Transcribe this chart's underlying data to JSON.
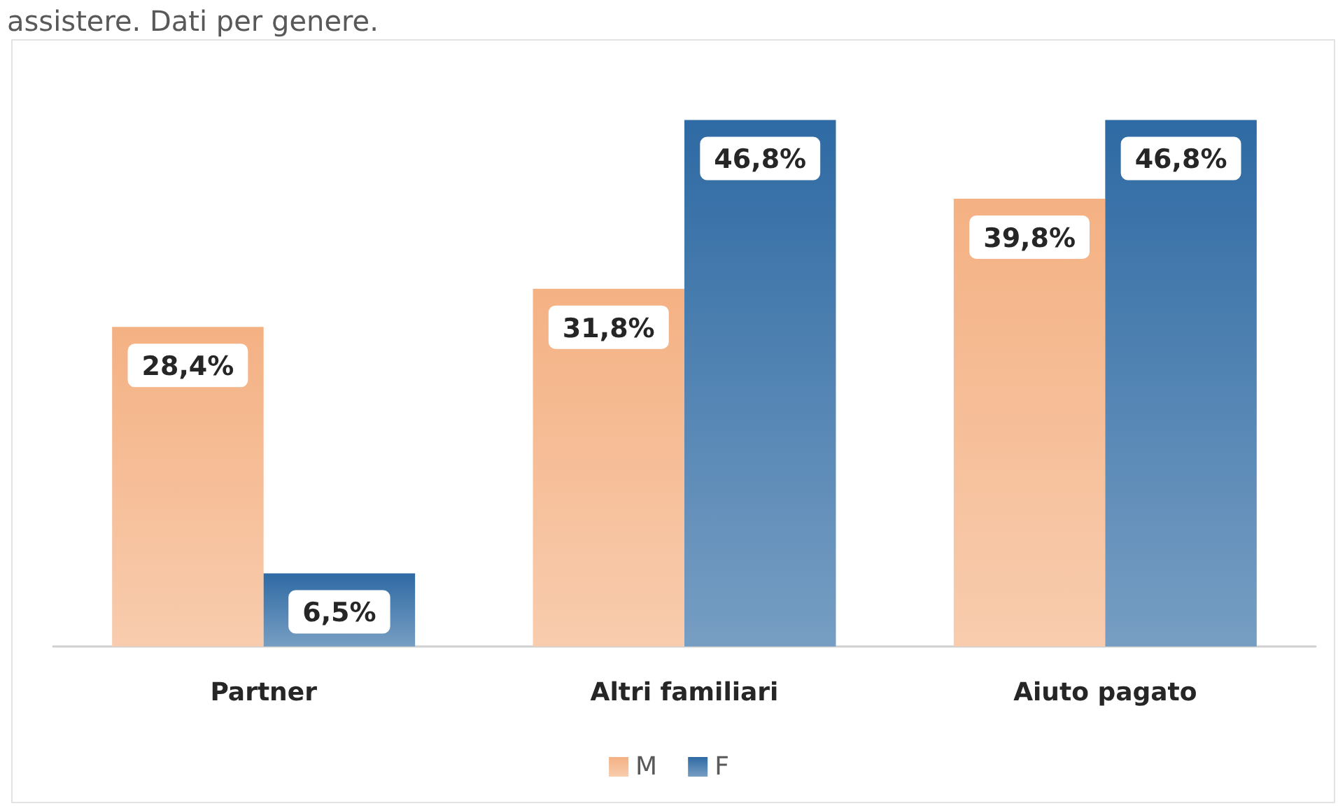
{
  "chart_data": {
    "type": "bar",
    "title": "assistere. Dati per genere.",
    "categories": [
      "Partner",
      "Altri familiari",
      "Aiuto pagato"
    ],
    "series": [
      {
        "name": "M",
        "color": "#f4b183",
        "values": [
          28.4,
          31.8,
          39.8
        ],
        "value_labels": [
          "28,4%",
          "31,8%",
          "39,8%"
        ]
      },
      {
        "name": "F",
        "color": "#2e6aa3",
        "values": [
          6.5,
          46.8,
          46.8
        ],
        "value_labels": [
          "6,5%",
          "46,8%",
          "46,8%"
        ]
      }
    ],
    "legend": "bottom"
  }
}
